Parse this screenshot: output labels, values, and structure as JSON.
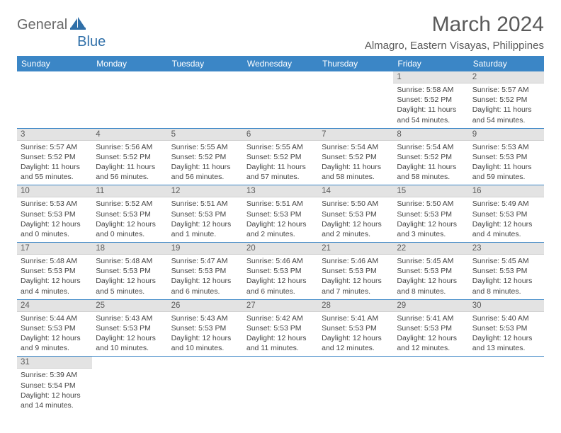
{
  "logo": {
    "textGray": "General",
    "textBlue": "Blue"
  },
  "header": {
    "monthTitle": "March 2024",
    "location": "Almagro, Eastern Visayas, Philippines"
  },
  "colors": {
    "headerBg": "#3b86c6",
    "headerText": "#ffffff",
    "dayBg": "#e3e3e3",
    "rowBorder": "#3b86c6"
  },
  "dayNames": [
    "Sunday",
    "Monday",
    "Tuesday",
    "Wednesday",
    "Thursday",
    "Friday",
    "Saturday"
  ],
  "weeks": [
    [
      null,
      null,
      null,
      null,
      null,
      {
        "n": "1",
        "sr": "5:58 AM",
        "ss": "5:52 PM",
        "dl": "11 hours and 54 minutes."
      },
      {
        "n": "2",
        "sr": "5:57 AM",
        "ss": "5:52 PM",
        "dl": "11 hours and 54 minutes."
      }
    ],
    [
      {
        "n": "3",
        "sr": "5:57 AM",
        "ss": "5:52 PM",
        "dl": "11 hours and 55 minutes."
      },
      {
        "n": "4",
        "sr": "5:56 AM",
        "ss": "5:52 PM",
        "dl": "11 hours and 56 minutes."
      },
      {
        "n": "5",
        "sr": "5:55 AM",
        "ss": "5:52 PM",
        "dl": "11 hours and 56 minutes."
      },
      {
        "n": "6",
        "sr": "5:55 AM",
        "ss": "5:52 PM",
        "dl": "11 hours and 57 minutes."
      },
      {
        "n": "7",
        "sr": "5:54 AM",
        "ss": "5:52 PM",
        "dl": "11 hours and 58 minutes."
      },
      {
        "n": "8",
        "sr": "5:54 AM",
        "ss": "5:52 PM",
        "dl": "11 hours and 58 minutes."
      },
      {
        "n": "9",
        "sr": "5:53 AM",
        "ss": "5:53 PM",
        "dl": "11 hours and 59 minutes."
      }
    ],
    [
      {
        "n": "10",
        "sr": "5:53 AM",
        "ss": "5:53 PM",
        "dl": "12 hours and 0 minutes."
      },
      {
        "n": "11",
        "sr": "5:52 AM",
        "ss": "5:53 PM",
        "dl": "12 hours and 0 minutes."
      },
      {
        "n": "12",
        "sr": "5:51 AM",
        "ss": "5:53 PM",
        "dl": "12 hours and 1 minute."
      },
      {
        "n": "13",
        "sr": "5:51 AM",
        "ss": "5:53 PM",
        "dl": "12 hours and 2 minutes."
      },
      {
        "n": "14",
        "sr": "5:50 AM",
        "ss": "5:53 PM",
        "dl": "12 hours and 2 minutes."
      },
      {
        "n": "15",
        "sr": "5:50 AM",
        "ss": "5:53 PM",
        "dl": "12 hours and 3 minutes."
      },
      {
        "n": "16",
        "sr": "5:49 AM",
        "ss": "5:53 PM",
        "dl": "12 hours and 4 minutes."
      }
    ],
    [
      {
        "n": "17",
        "sr": "5:48 AM",
        "ss": "5:53 PM",
        "dl": "12 hours and 4 minutes."
      },
      {
        "n": "18",
        "sr": "5:48 AM",
        "ss": "5:53 PM",
        "dl": "12 hours and 5 minutes."
      },
      {
        "n": "19",
        "sr": "5:47 AM",
        "ss": "5:53 PM",
        "dl": "12 hours and 6 minutes."
      },
      {
        "n": "20",
        "sr": "5:46 AM",
        "ss": "5:53 PM",
        "dl": "12 hours and 6 minutes."
      },
      {
        "n": "21",
        "sr": "5:46 AM",
        "ss": "5:53 PM",
        "dl": "12 hours and 7 minutes."
      },
      {
        "n": "22",
        "sr": "5:45 AM",
        "ss": "5:53 PM",
        "dl": "12 hours and 8 minutes."
      },
      {
        "n": "23",
        "sr": "5:45 AM",
        "ss": "5:53 PM",
        "dl": "12 hours and 8 minutes."
      }
    ],
    [
      {
        "n": "24",
        "sr": "5:44 AM",
        "ss": "5:53 PM",
        "dl": "12 hours and 9 minutes."
      },
      {
        "n": "25",
        "sr": "5:43 AM",
        "ss": "5:53 PM",
        "dl": "12 hours and 10 minutes."
      },
      {
        "n": "26",
        "sr": "5:43 AM",
        "ss": "5:53 PM",
        "dl": "12 hours and 10 minutes."
      },
      {
        "n": "27",
        "sr": "5:42 AM",
        "ss": "5:53 PM",
        "dl": "12 hours and 11 minutes."
      },
      {
        "n": "28",
        "sr": "5:41 AM",
        "ss": "5:53 PM",
        "dl": "12 hours and 12 minutes."
      },
      {
        "n": "29",
        "sr": "5:41 AM",
        "ss": "5:53 PM",
        "dl": "12 hours and 12 minutes."
      },
      {
        "n": "30",
        "sr": "5:40 AM",
        "ss": "5:53 PM",
        "dl": "12 hours and 13 minutes."
      }
    ],
    [
      {
        "n": "31",
        "sr": "5:39 AM",
        "ss": "5:54 PM",
        "dl": "12 hours and 14 minutes."
      },
      null,
      null,
      null,
      null,
      null,
      null
    ]
  ],
  "labels": {
    "sunrise": "Sunrise: ",
    "sunset": "Sunset: ",
    "daylight": "Daylight: "
  }
}
